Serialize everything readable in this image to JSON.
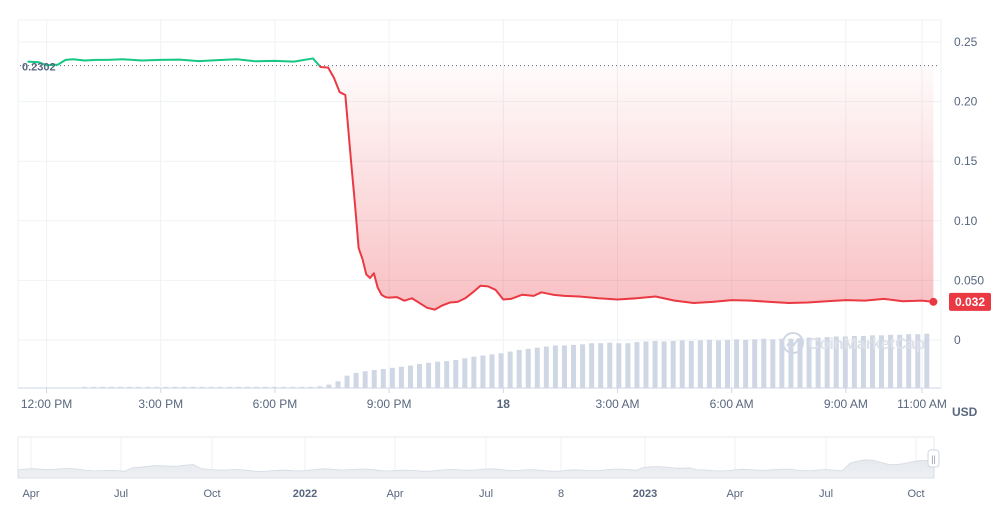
{
  "chart_data": {
    "type": "line",
    "currency_label": "USD",
    "reference_price_label": "0.2302",
    "reference_price": 0.2302,
    "current_price_label": "0.032",
    "current_price": 0.032,
    "watermark": "CoinMarketCap",
    "y_ticks": [
      "0.25",
      "0.20",
      "0.15",
      "0.10",
      "0.050",
      "0"
    ],
    "y_tick_values": [
      0.25,
      0.2,
      0.15,
      0.1,
      0.05,
      0.0
    ],
    "x_ticks": [
      "12:00 PM",
      "3:00 PM",
      "6:00 PM",
      "9:00 PM",
      "18",
      "3:00 AM",
      "6:00 AM",
      "9:00 AM",
      "11:00 AM"
    ],
    "x_tick_hours": [
      12,
      15,
      18,
      21,
      24,
      27,
      30,
      33,
      35
    ],
    "x_tick_bold": [
      false,
      false,
      false,
      false,
      true,
      false,
      false,
      false,
      false
    ],
    "x_range_hours": [
      11.25,
      35.5
    ],
    "ylim": [
      0,
      0.25
    ],
    "colors": {
      "up": "#16c784",
      "down": "#ea3943",
      "grid": "#eff2f5",
      "volume": "#cfd6e4",
      "text": "#58667e"
    },
    "series": [
      {
        "values_x_hours": [
          11.5,
          11.8,
          12.0,
          12.3,
          12.5,
          12.7,
          13.0,
          13.3,
          13.6,
          14.0,
          14.5,
          15.0,
          15.5,
          16.0,
          16.5,
          17.0,
          17.5,
          18.0,
          18.5,
          19.0,
          19.2,
          19.4,
          19.55,
          19.7,
          19.85,
          20.0,
          20.1,
          20.2,
          20.3,
          20.4,
          20.5,
          20.6,
          20.7,
          20.8,
          20.9,
          21.0,
          21.2,
          21.4,
          21.6,
          21.8,
          22.0,
          22.2,
          22.4,
          22.6,
          22.8,
          23.0,
          23.2,
          23.4,
          23.6,
          23.8,
          24.0,
          24.2,
          24.5,
          24.8,
          25.0,
          25.3,
          25.6,
          26.0,
          26.5,
          27.0,
          27.5,
          28.0,
          28.5,
          29.0,
          29.5,
          30.0,
          30.5,
          31.0,
          31.5,
          32.0,
          32.5,
          33.0,
          33.5,
          34.0,
          34.5,
          35.0,
          35.3
        ],
        "values_y": [
          0.2335,
          0.233,
          0.2305,
          0.231,
          0.235,
          0.2355,
          0.2345,
          0.235,
          0.235,
          0.2355,
          0.2345,
          0.235,
          0.2352,
          0.234,
          0.2348,
          0.2355,
          0.2338,
          0.2342,
          0.2335,
          0.2362,
          0.229,
          0.2285,
          0.22,
          0.208,
          0.2055,
          0.15,
          0.115,
          0.077,
          0.068,
          0.055,
          0.052,
          0.056,
          0.044,
          0.038,
          0.036,
          0.0355,
          0.036,
          0.033,
          0.035,
          0.031,
          0.027,
          0.0255,
          0.029,
          0.0315,
          0.032,
          0.035,
          0.04,
          0.0455,
          0.045,
          0.042,
          0.034,
          0.0345,
          0.038,
          0.037,
          0.04,
          0.038,
          0.037,
          0.0365,
          0.035,
          0.034,
          0.035,
          0.0365,
          0.033,
          0.031,
          0.032,
          0.0335,
          0.033,
          0.032,
          0.031,
          0.0315,
          0.0325,
          0.0335,
          0.033,
          0.0345,
          0.0325,
          0.033,
          0.032
        ]
      }
    ],
    "volume_relative": [
      0.01,
      0.01,
      0.01,
      0.01,
      0.01,
      0.01,
      0.02,
      0.02,
      0.02,
      0.02,
      0.02,
      0.02,
      0.02,
      0.02,
      0.02,
      0.02,
      0.02,
      0.02,
      0.02,
      0.02,
      0.02,
      0.02,
      0.02,
      0.02,
      0.02,
      0.02,
      0.02,
      0.02,
      0.02,
      0.02,
      0.02,
      0.02,
      0.03,
      0.06,
      0.12,
      0.22,
      0.27,
      0.3,
      0.32,
      0.34,
      0.36,
      0.38,
      0.4,
      0.43,
      0.45,
      0.47,
      0.48,
      0.5,
      0.53,
      0.56,
      0.58,
      0.6,
      0.62,
      0.65,
      0.68,
      0.7,
      0.72,
      0.74,
      0.76,
      0.76,
      0.77,
      0.78,
      0.8,
      0.8,
      0.81,
      0.8,
      0.8,
      0.82,
      0.83,
      0.84,
      0.83,
      0.84,
      0.85,
      0.84,
      0.85,
      0.86,
      0.85,
      0.86,
      0.87,
      0.86,
      0.87,
      0.88,
      0.87,
      0.88,
      0.88,
      0.89,
      0.9,
      0.9,
      0.91,
      0.92,
      0.92,
      0.93,
      0.93,
      0.94,
      0.94,
      0.95,
      0.95,
      0.96,
      0.96,
      0.97
    ],
    "navigator": {
      "x_ticks": [
        "Apr",
        "Jul",
        "Oct",
        "2022",
        "Apr",
        "Jul",
        "8",
        "2023",
        "Apr",
        "Jul",
        "Oct"
      ],
      "x_tick_bold": [
        false,
        false,
        false,
        true,
        false,
        false,
        false,
        true,
        false,
        false,
        false
      ],
      "handle_label": "||"
    }
  }
}
